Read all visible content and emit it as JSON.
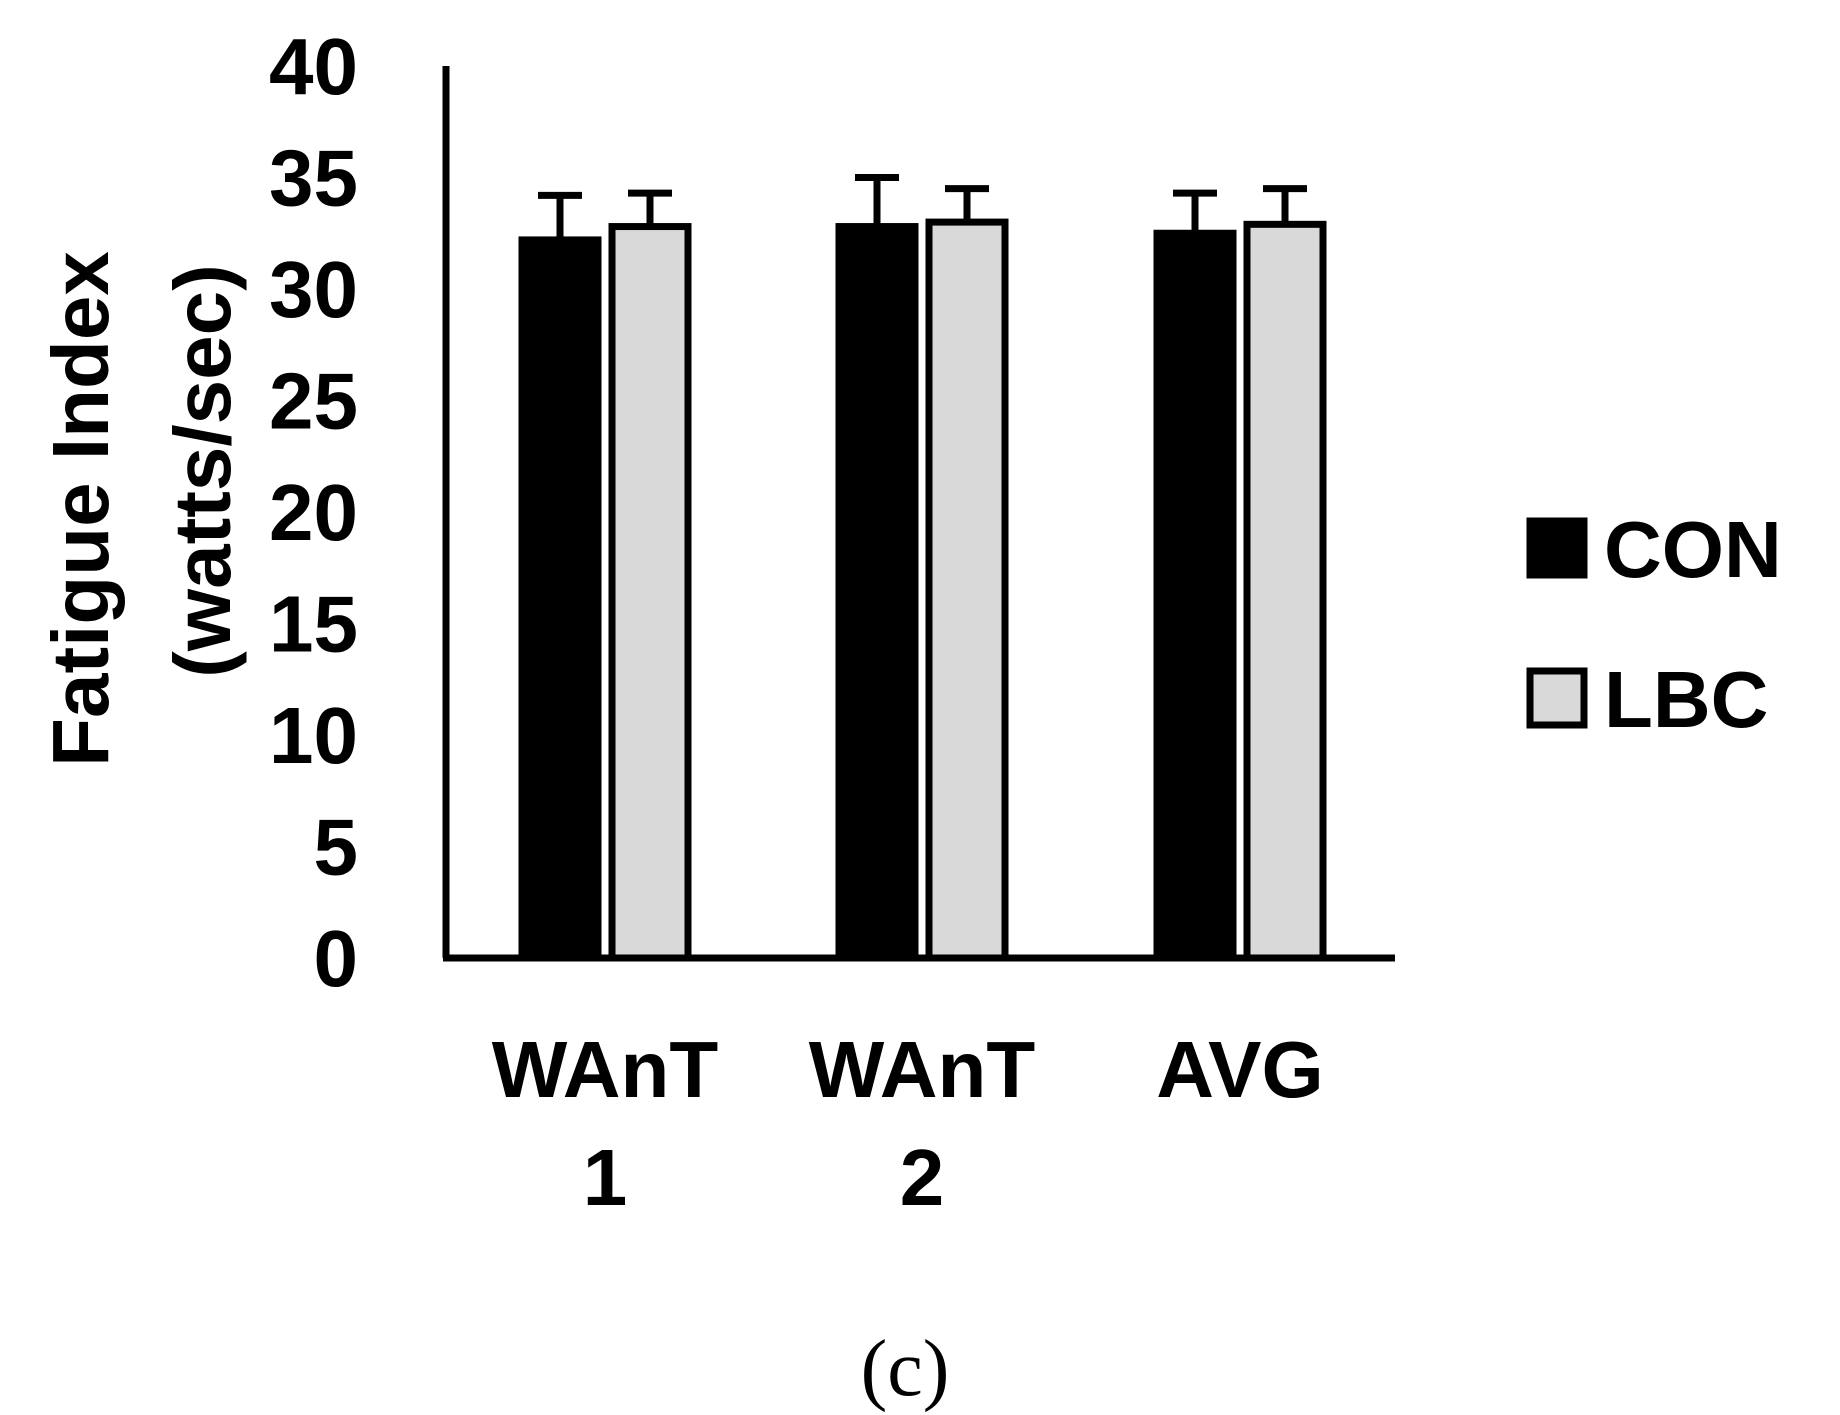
{
  "chart_data": {
    "type": "bar",
    "ylabel_line1": "Fatigue Index",
    "ylabel_line2": "(watts/sec)",
    "xlabel": "",
    "categories": [
      [
        "WAnT",
        "1"
      ],
      [
        "WAnT",
        "2"
      ],
      [
        "AVG",
        ""
      ]
    ],
    "ylim": [
      0,
      40
    ],
    "yticks": [
      "0",
      "5",
      "10",
      "15",
      "20",
      "25",
      "30",
      "35",
      "40"
    ],
    "series": [
      {
        "name": "CON",
        "color": "#000000",
        "values": [
          32.2,
          32.8,
          32.5
        ],
        "errors": [
          2.0,
          2.2,
          1.8
        ]
      },
      {
        "name": "LBC",
        "color": "#d9d9d9",
        "values": [
          32.8,
          33.0,
          32.9
        ],
        "errors": [
          1.5,
          1.5,
          1.6
        ]
      }
    ],
    "legend_position": "right",
    "grid": false
  },
  "panel_label": "(c)"
}
